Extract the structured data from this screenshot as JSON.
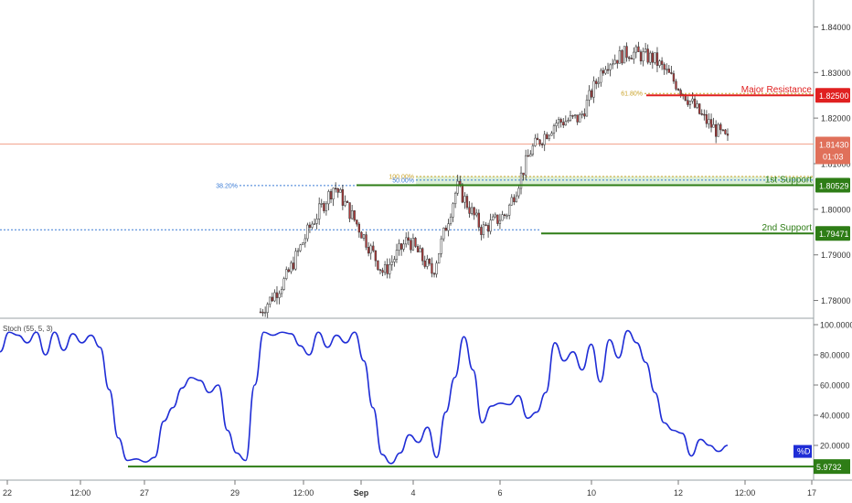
{
  "chart_data": [
    {
      "type": "candlestick",
      "title": "",
      "y_axis_ticks": [
        "1.84000",
        "1.83000",
        "1.82000",
        "1.81000",
        "1.80000",
        "1.79000",
        "1.78000"
      ],
      "ylim": [
        1.7765,
        1.8455
      ],
      "current_price": {
        "value": 1.8143,
        "label": "1.81430",
        "countdown": "01:03"
      },
      "levels": [
        {
          "name": "Major Resistance",
          "value": 1.825,
          "label": "1.82500",
          "color": "#e02020"
        },
        {
          "name": "1st Support",
          "value": 1.80529,
          "label": "1.80529",
          "color": "#2e7d16"
        },
        {
          "name": "2nd Support",
          "value": 1.79471,
          "label": "1.79471",
          "color": "#2e7d16"
        }
      ],
      "fibonacci": [
        {
          "label": "61.80%",
          "value": 1.8254,
          "color": "#c9a227"
        },
        {
          "label": "100.00%",
          "value": 1.8072,
          "color": "#c9a227"
        },
        {
          "label": "50.00%",
          "value": 1.8064,
          "color": "#3a7bd5"
        },
        {
          "label": "38.20%",
          "value": 1.8052,
          "color": "#3a7bd5"
        }
      ],
      "price_path": [
        {
          "x": "29",
          "y": 1.7775
        },
        {
          "x": "30",
          "y": 1.7845
        },
        {
          "x": "31",
          "y": 1.796
        },
        {
          "x": "Sep",
          "y": 1.8052
        },
        {
          "x": "3",
          "y": 1.796
        },
        {
          "x": "4",
          "y": 1.786
        },
        {
          "x": "5",
          "y": 1.7935
        },
        {
          "x": "5",
          "y": 1.786
        },
        {
          "x": "6",
          "y": 1.805
        },
        {
          "x": "6",
          "y": 1.7955
        },
        {
          "x": "7",
          "y": 1.799
        },
        {
          "x": "10",
          "y": 1.813
        },
        {
          "x": "10",
          "y": 1.819
        },
        {
          "x": "11",
          "y": 1.82
        },
        {
          "x": "11",
          "y": 1.832
        },
        {
          "x": "11",
          "y": 1.8345
        },
        {
          "x": "12",
          "y": 1.833
        },
        {
          "x": "12",
          "y": 1.827
        },
        {
          "x": "12",
          "y": 1.82
        },
        {
          "x": "12",
          "y": 1.815
        }
      ]
    },
    {
      "type": "line",
      "indicator_label": "Stoch (55, 5, 3)",
      "series_label": "%D",
      "y_axis_ticks": [
        "100.0000",
        "80.0000",
        "60.0000",
        "40.0000",
        "20.0000"
      ],
      "ylim": [
        0,
        100
      ],
      "line_level": {
        "value": 5.9732,
        "label": "5.9732"
      },
      "values": [
        82,
        95,
        93,
        88,
        95,
        80,
        95,
        83,
        94,
        88,
        93,
        85,
        57,
        25,
        10,
        11,
        9,
        12,
        36,
        45,
        58,
        65,
        63,
        55,
        60,
        30,
        15,
        10,
        60,
        95,
        93,
        95,
        94,
        86,
        80,
        95,
        85,
        93,
        88,
        95,
        76,
        45,
        14,
        8,
        15,
        27,
        22,
        32,
        12,
        42,
        65,
        92,
        70,
        35,
        46,
        48,
        47,
        53,
        38,
        42,
        55,
        88,
        76,
        82,
        70,
        87,
        62,
        90,
        78,
        96,
        88,
        75,
        55,
        35,
        30,
        28,
        13,
        24,
        20,
        16,
        20
      ],
      "color": "#1f2dd6"
    }
  ],
  "x_axis_labels": [
    "22",
    "12:00",
    "27",
    "29",
    "12:00",
    "Sep",
    "4",
    "6",
    "10",
    "12",
    "12:00",
    "17"
  ],
  "annotations": {
    "major_resistance": "Major Resistance",
    "first_support": "1st Support",
    "second_support": "2nd Support"
  }
}
